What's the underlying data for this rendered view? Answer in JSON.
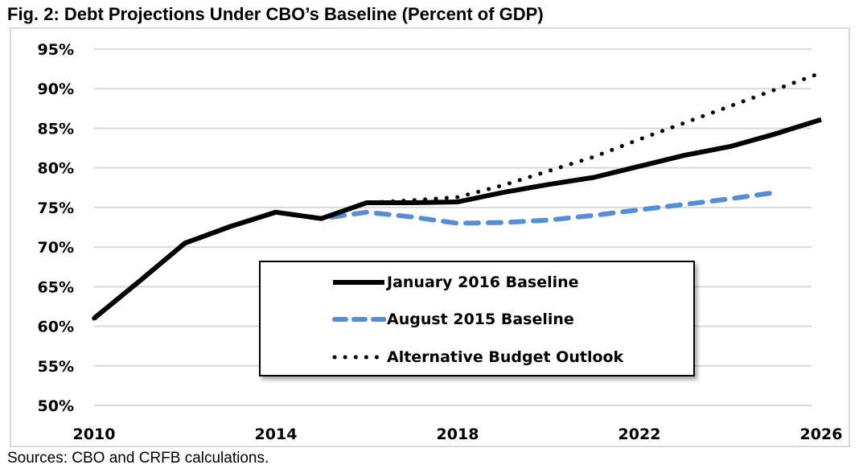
{
  "title": "Fig. 2: Debt Projections Under CBO’s Baseline (Percent of GDP)",
  "source": "Sources: CBO and CRFB calculations.",
  "chart_data": {
    "type": "line",
    "title": "Fig. 2: Debt Projections Under CBO’s Baseline (Percent of GDP)",
    "xlabel": "",
    "ylabel": "",
    "xlim": [
      2010,
      2026
    ],
    "ylim": [
      50,
      95
    ],
    "x_ticks": [
      2010,
      2014,
      2018,
      2022,
      2026
    ],
    "x_tick_labels": [
      "2010",
      "2014",
      "2018",
      "2022",
      "2026"
    ],
    "y_ticks": [
      50,
      55,
      60,
      65,
      70,
      75,
      80,
      85,
      90,
      95
    ],
    "y_tick_labels": [
      "50%",
      "55%",
      "60%",
      "65%",
      "70%",
      "75%",
      "80%",
      "85%",
      "90%",
      "95%"
    ],
    "grid": "horizontal",
    "legend_position": "center-bottom",
    "series": [
      {
        "name": "January 2016 Baseline",
        "color": "#000000",
        "style": "solid",
        "x": [
          2010,
          2011,
          2012,
          2013,
          2014,
          2015,
          2016,
          2017,
          2018,
          2019,
          2020,
          2021,
          2022,
          2023,
          2024,
          2025,
          2026
        ],
        "values": [
          61.0,
          65.7,
          70.5,
          72.6,
          74.4,
          73.6,
          75.6,
          75.6,
          75.7,
          76.9,
          77.9,
          78.8,
          80.2,
          81.6,
          82.7,
          84.3,
          86.1
        ]
      },
      {
        "name": "August 2015 Baseline",
        "color": "#558ED5",
        "style": "dashed",
        "x": [
          2010,
          2011,
          2012,
          2013,
          2014,
          2015,
          2016,
          2017,
          2018,
          2019,
          2020,
          2021,
          2022,
          2023,
          2024,
          2025
        ],
        "values": [
          61.0,
          65.7,
          70.5,
          72.6,
          74.4,
          73.6,
          74.4,
          73.8,
          73.0,
          73.1,
          73.4,
          74.0,
          74.7,
          75.4,
          76.1,
          76.9
        ]
      },
      {
        "name": "Alternative Budget Outlook",
        "color": "#000000",
        "style": "dotted",
        "x": [
          2010,
          2011,
          2012,
          2013,
          2014,
          2015,
          2016,
          2017,
          2018,
          2019,
          2020,
          2021,
          2022,
          2023,
          2024,
          2025,
          2026
        ],
        "values": [
          61.0,
          65.7,
          70.5,
          72.6,
          74.4,
          73.6,
          75.6,
          75.9,
          76.3,
          77.8,
          79.6,
          81.4,
          83.6,
          85.7,
          87.8,
          89.9,
          92.0
        ]
      }
    ]
  }
}
